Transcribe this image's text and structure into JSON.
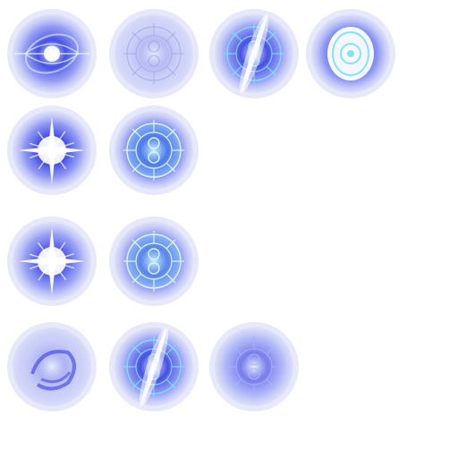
{
  "sheet": {
    "background": "#ffffff",
    "rows": [
      {
        "frames": [
          {
            "variant": "swirl-vortex",
            "icon": "vortex-icon",
            "intensity": 0.85
          },
          {
            "variant": "faded-rune",
            "icon": "rune-circle-icon",
            "intensity": 0.25
          },
          {
            "variant": "rune-slash",
            "icon": "rune-slash-icon",
            "intensity": 0.85
          },
          {
            "variant": "bright-ring",
            "icon": "bright-ring-icon",
            "intensity": 0.9
          }
        ]
      },
      {
        "frames": [
          {
            "variant": "starburst",
            "icon": "starburst-icon",
            "intensity": 0.9
          },
          {
            "variant": "rune-glow",
            "icon": "rune-glow-icon",
            "intensity": 0.95
          }
        ]
      },
      {
        "frames": [
          {
            "variant": "starburst",
            "icon": "starburst-icon",
            "intensity": 0.8
          },
          {
            "variant": "rune-glow",
            "icon": "rune-glow-icon",
            "intensity": 0.85
          }
        ]
      },
      {
        "frames": [
          {
            "variant": "faded-swirl",
            "icon": "faded-swirl-icon",
            "intensity": 0.3
          },
          {
            "variant": "rune-slash",
            "icon": "rune-slash-icon",
            "intensity": 0.85
          },
          {
            "variant": "dim-rune",
            "icon": "dim-rune-icon",
            "intensity": 0.6
          }
        ]
      }
    ],
    "colors": {
      "glow_outer": "#c9cff5",
      "glow_mid": "#5d6bf0",
      "core_deep": "#2b35e0",
      "highlight": "#e6f6ff",
      "cyan": "#7fe4ff"
    }
  }
}
